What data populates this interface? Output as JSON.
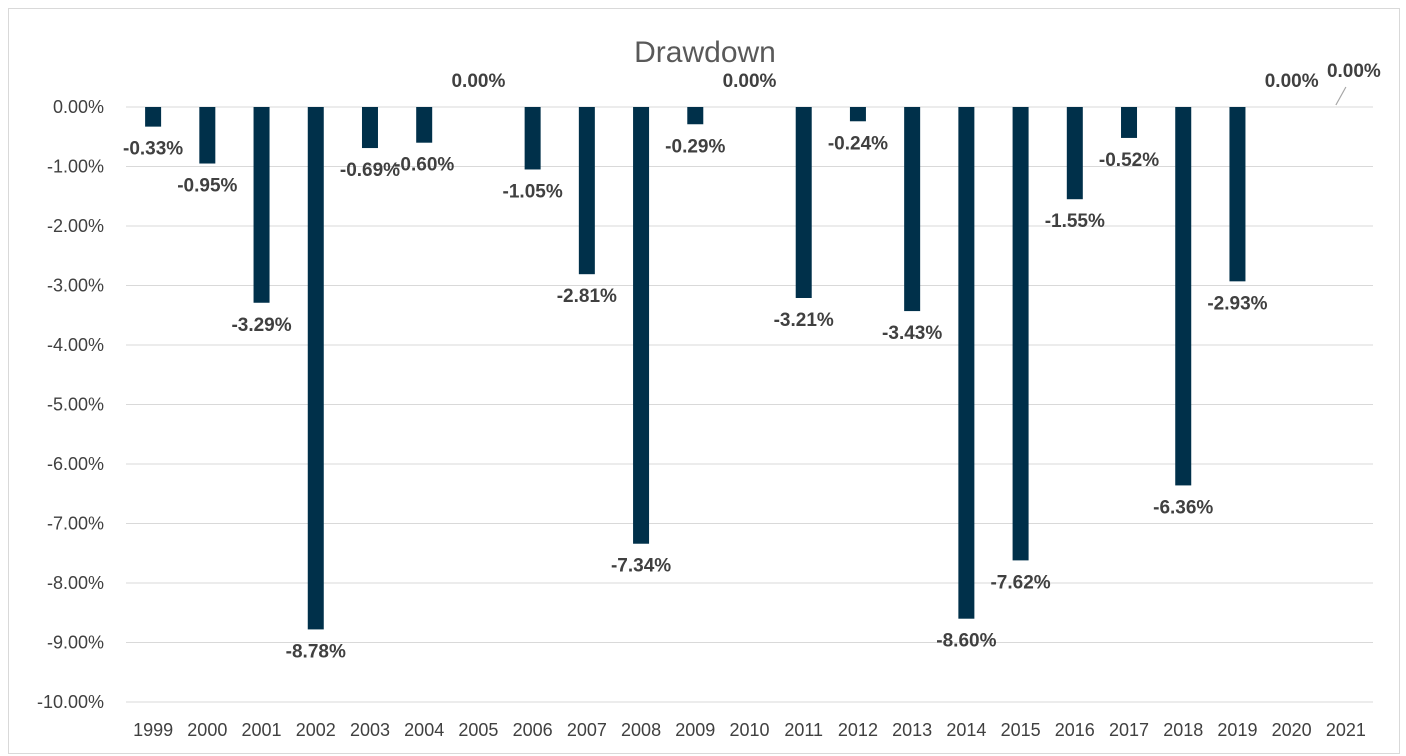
{
  "chart_data": {
    "type": "bar",
    "title": "Drawdown",
    "xlabel": "",
    "ylabel": "",
    "categories": [
      "1999",
      "2000",
      "2001",
      "2002",
      "2003",
      "2004",
      "2005",
      "2006",
      "2007",
      "2008",
      "2009",
      "2010",
      "2011",
      "2012",
      "2013",
      "2014",
      "2015",
      "2016",
      "2017",
      "2018",
      "2019",
      "2020",
      "2021"
    ],
    "values": [
      -0.33,
      -0.95,
      -3.29,
      -8.78,
      -0.69,
      -0.6,
      0.0,
      -1.05,
      -2.81,
      -7.34,
      -0.29,
      0.0,
      -3.21,
      -0.24,
      -3.43,
      -8.6,
      -7.62,
      -1.55,
      -0.52,
      -6.36,
      -2.93,
      0.0,
      0.0
    ],
    "data_labels": [
      "-0.33%",
      "-0.95%",
      "-3.29%",
      "-8.78%",
      "-0.69%",
      "-0.60%",
      "0.00%",
      "-1.05%",
      "-2.81%",
      "-7.34%",
      "-0.29%",
      "0.00%",
      "-3.21%",
      "-0.24%",
      "-3.43%",
      "-8.60%",
      "-7.62%",
      "-1.55%",
      "-0.52%",
      "-6.36%",
      "-2.93%",
      "0.00%",
      "0.00%"
    ],
    "ylim": [
      -10,
      0
    ],
    "y_ticks": [
      "0.00%",
      "-1.00%",
      "-2.00%",
      "-3.00%",
      "-4.00%",
      "-5.00%",
      "-6.00%",
      "-7.00%",
      "-8.00%",
      "-9.00%",
      "-10.00%"
    ],
    "grid": true,
    "legend": "none",
    "bar_color": "#00304a"
  }
}
